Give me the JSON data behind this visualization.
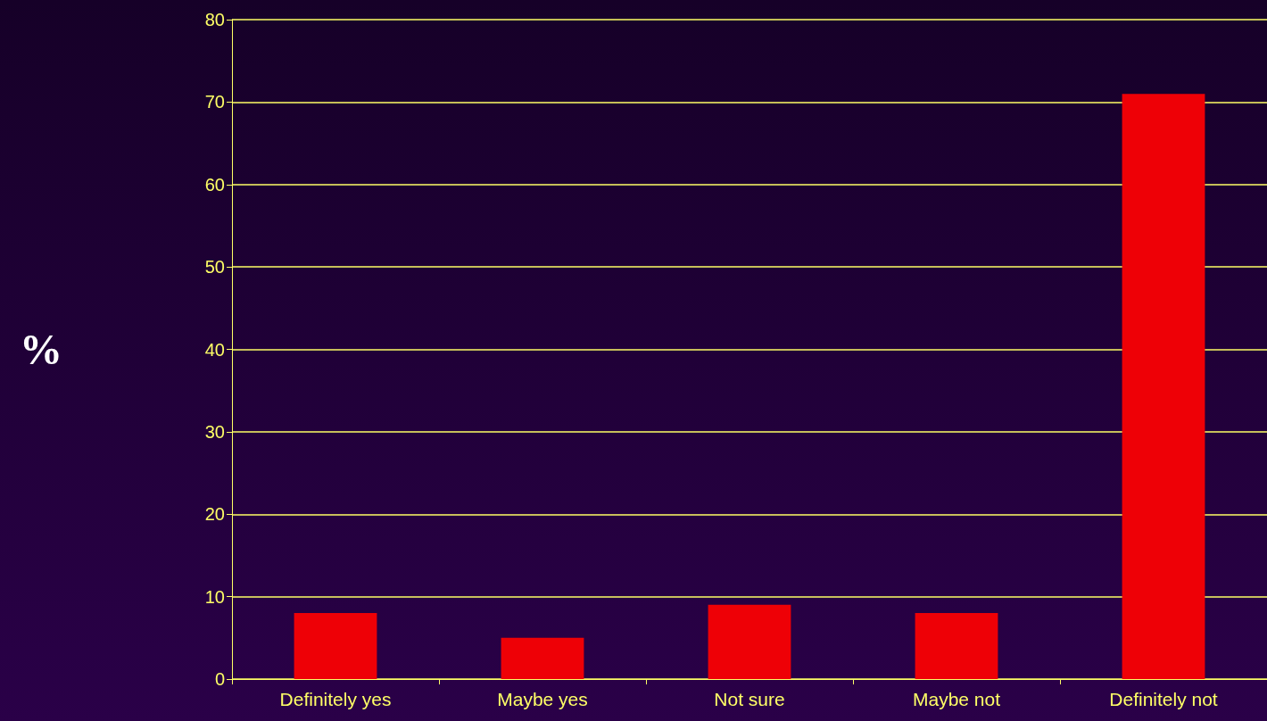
{
  "chart_data": {
    "type": "bar",
    "ylabel": "%",
    "categories": [
      "Definitely yes",
      "Maybe yes",
      "Not sure",
      "Maybe not",
      "Definitely not"
    ],
    "values": [
      8,
      5,
      9,
      8,
      71
    ],
    "color": "#ee0006",
    "ylim": [
      0,
      80
    ],
    "yticks": [
      0,
      10,
      20,
      30,
      40,
      50,
      60,
      70,
      80
    ],
    "grid": "y"
  }
}
